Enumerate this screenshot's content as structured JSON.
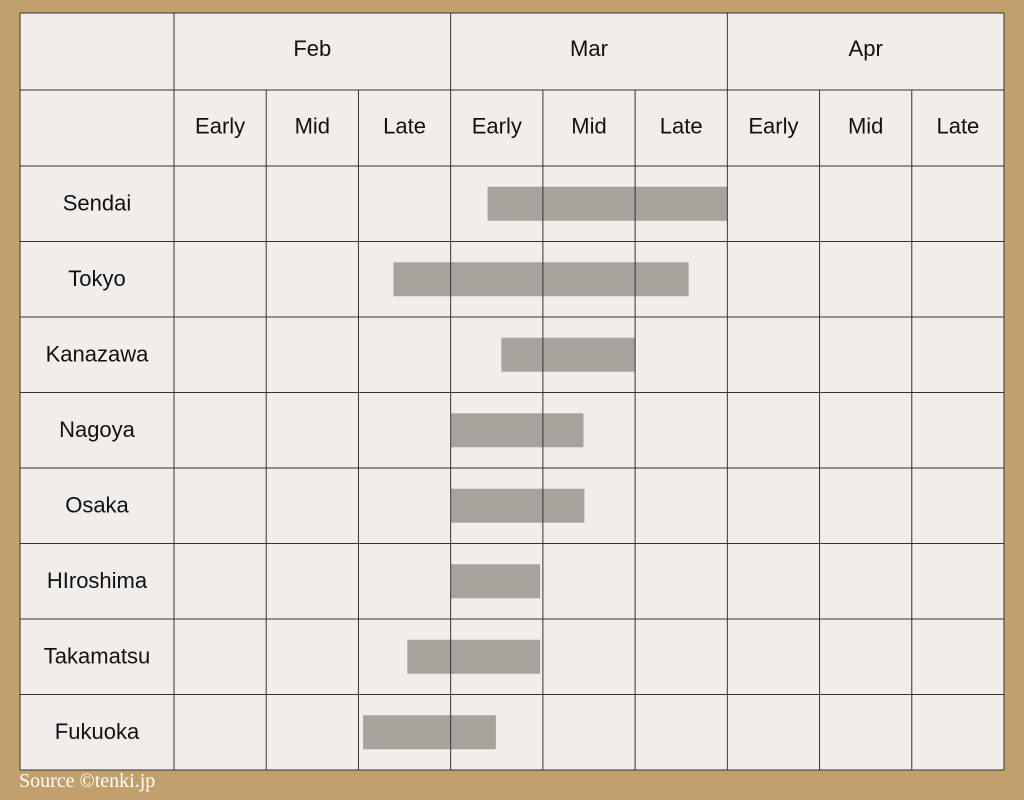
{
  "chart_data": {
    "type": "gantt",
    "months": [
      "Feb",
      "Mar",
      "Apr"
    ],
    "periods": [
      "Early",
      "Mid",
      "Late"
    ],
    "rows": [
      {
        "label": "Sendai",
        "start": 3.4,
        "end": 6.0
      },
      {
        "label": "Tokyo",
        "start": 2.38,
        "end": 5.58
      },
      {
        "label": "Kanazawa",
        "start": 3.55,
        "end": 5.0
      },
      {
        "label": "Nagoya",
        "start": 3.0,
        "end": 4.44
      },
      {
        "label": "Osaka",
        "start": 3.0,
        "end": 4.45
      },
      {
        "label": "HIroshima",
        "start": 3.0,
        "end": 3.97
      },
      {
        "label": "Takamatsu",
        "start": 2.53,
        "end": 3.97
      },
      {
        "label": "Fukuoka",
        "start": 2.05,
        "end": 3.49
      }
    ],
    "bar_color": "#a6a39d",
    "grid_color": "#333333",
    "cell_color": "#f0edeb"
  },
  "source": "Source ©tenki.jp"
}
